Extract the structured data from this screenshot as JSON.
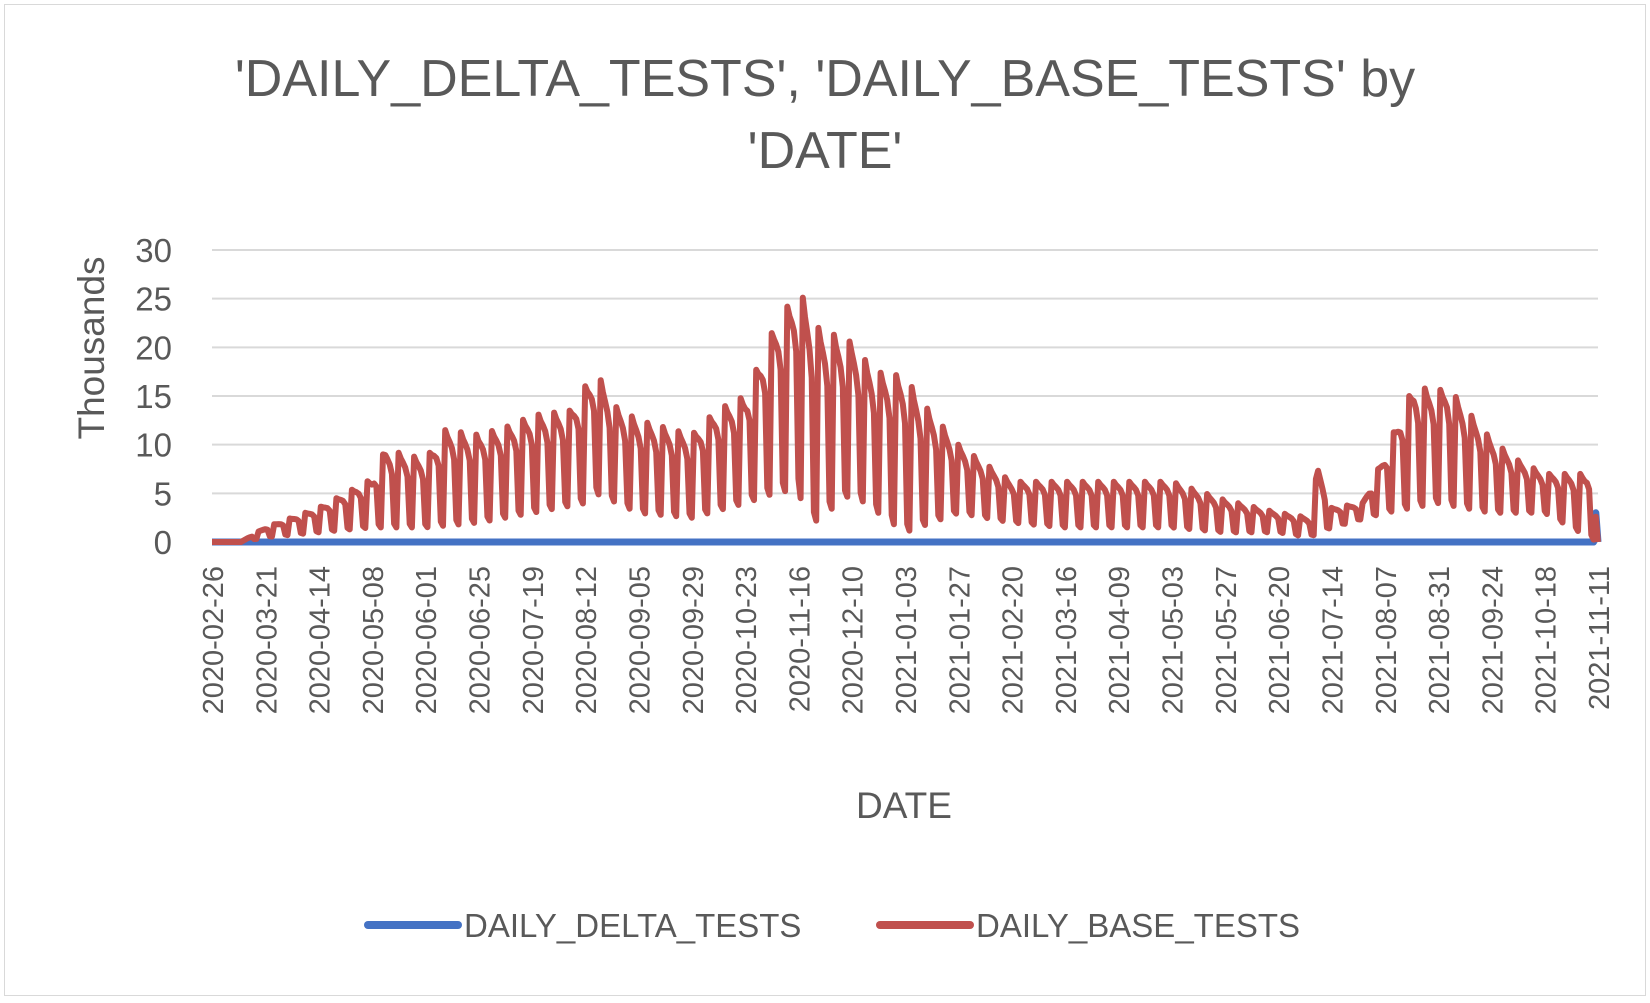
{
  "chart_data": {
    "type": "line",
    "title_lines": [
      "'DAILY_DELTA_TESTS', 'DAILY_BASE_TESTS' by",
      "'DATE'"
    ],
    "xlabel": "DATE",
    "ylabel": "Thousands",
    "ylim": [
      0,
      30
    ],
    "yticks": [
      "0",
      "5",
      "10",
      "15",
      "20",
      "25",
      "30"
    ],
    "x_tick_labels": [
      "2020-02-26",
      "2020-03-21",
      "2020-04-14",
      "2020-05-08",
      "2020-06-01",
      "2020-06-25",
      "2020-07-19",
      "2020-08-12",
      "2020-09-05",
      "2020-09-29",
      "2020-10-23",
      "2020-11-16",
      "2020-12-10",
      "2021-01-03",
      "2021-01-27",
      "2021-02-20",
      "2021-03-16",
      "2021-04-09",
      "2021-05-03",
      "2021-05-27",
      "2021-06-20",
      "2021-07-14",
      "2021-08-07",
      "2021-08-31",
      "2021-09-24",
      "2021-10-18",
      "2021-11-11"
    ],
    "x_range": [
      "2020-02-26",
      "2021-11-11"
    ],
    "grid": "horizontal",
    "legend_position": "bottom",
    "series": [
      {
        "name": "DAILY_DELTA_TESTS",
        "color": "#4472c4",
        "points": [
          [
            "2020-02-26",
            0
          ],
          [
            "2021-11-09",
            0
          ],
          [
            "2021-11-10",
            3.0
          ],
          [
            "2021-11-11",
            0
          ]
        ]
      },
      {
        "name": "DAILY_BASE_TESTS",
        "color": "#c0504d",
        "envelope_note": "daily values oscillate weekly between a high and a low envelope",
        "high_envelope": [
          [
            "2020-02-26",
            0
          ],
          [
            "2020-03-10",
            0
          ],
          [
            "2020-03-21",
            1.5
          ],
          [
            "2020-04-14",
            3.5
          ],
          [
            "2020-05-08",
            6.5
          ],
          [
            "2020-05-14",
            9.5
          ],
          [
            "2020-06-01",
            8.5
          ],
          [
            "2020-06-10",
            11.5
          ],
          [
            "2020-06-25",
            11
          ],
          [
            "2020-07-10",
            12
          ],
          [
            "2020-07-19",
            13
          ],
          [
            "2020-08-05",
            13.5
          ],
          [
            "2020-08-12",
            16
          ],
          [
            "2020-08-17",
            17.5
          ],
          [
            "2020-08-25",
            14
          ],
          [
            "2020-09-05",
            12.5
          ],
          [
            "2020-09-29",
            11
          ],
          [
            "2020-10-10",
            13.5
          ],
          [
            "2020-10-23",
            15
          ],
          [
            "2020-11-05",
            22
          ],
          [
            "2020-11-16",
            26
          ],
          [
            "2020-11-25",
            22
          ],
          [
            "2020-12-10",
            20.5
          ],
          [
            "2020-12-20",
            17.5
          ],
          [
            "2021-01-03",
            17
          ],
          [
            "2021-01-10",
            14.5
          ],
          [
            "2021-01-27",
            10
          ],
          [
            "2021-02-05",
            8.5
          ],
          [
            "2021-02-20",
            6.2
          ],
          [
            "2021-03-16",
            6.2
          ],
          [
            "2021-04-09",
            6.2
          ],
          [
            "2021-05-03",
            6.2
          ],
          [
            "2021-05-27",
            4.3
          ],
          [
            "2021-06-20",
            3
          ],
          [
            "2021-07-04",
            2.5
          ],
          [
            "2021-07-08",
            7.8
          ],
          [
            "2021-07-14",
            3.5
          ],
          [
            "2021-07-28",
            4
          ],
          [
            "2021-08-07",
            9
          ],
          [
            "2021-08-14",
            13
          ],
          [
            "2021-08-20",
            16
          ],
          [
            "2021-08-31",
            15.5
          ],
          [
            "2021-09-04",
            16
          ],
          [
            "2021-09-24",
            10.5
          ],
          [
            "2021-10-05",
            8.5
          ],
          [
            "2021-10-18",
            7
          ],
          [
            "2021-11-05",
            7
          ],
          [
            "2021-11-08",
            7.8
          ],
          [
            "2021-11-11",
            0
          ]
        ],
        "low_envelope": [
          [
            "2020-02-26",
            0
          ],
          [
            "2020-03-10",
            0
          ],
          [
            "2020-03-21",
            0.5
          ],
          [
            "2020-04-14",
            1
          ],
          [
            "2020-05-08",
            1.5
          ],
          [
            "2020-06-01",
            1.5
          ],
          [
            "2020-06-25",
            2
          ],
          [
            "2020-07-19",
            3
          ],
          [
            "2020-08-12",
            4
          ],
          [
            "2020-08-17",
            5
          ],
          [
            "2020-09-05",
            3
          ],
          [
            "2020-09-29",
            2.5
          ],
          [
            "2020-10-23",
            4
          ],
          [
            "2020-11-05",
            5
          ],
          [
            "2020-11-16",
            5.5
          ],
          [
            "2020-11-20",
            1.5
          ],
          [
            "2020-12-10",
            5
          ],
          [
            "2021-01-03",
            1
          ],
          [
            "2021-01-27",
            3
          ],
          [
            "2021-02-20",
            2
          ],
          [
            "2021-03-16",
            1.5
          ],
          [
            "2021-04-09",
            1.5
          ],
          [
            "2021-05-03",
            1.5
          ],
          [
            "2021-05-27",
            1
          ],
          [
            "2021-06-20",
            1
          ],
          [
            "2021-07-04",
            0.5
          ],
          [
            "2021-07-14",
            1.5
          ],
          [
            "2021-08-07",
            3
          ],
          [
            "2021-08-31",
            4
          ],
          [
            "2021-09-24",
            3
          ],
          [
            "2021-10-18",
            3
          ],
          [
            "2021-11-11",
            0
          ]
        ]
      }
    ]
  }
}
